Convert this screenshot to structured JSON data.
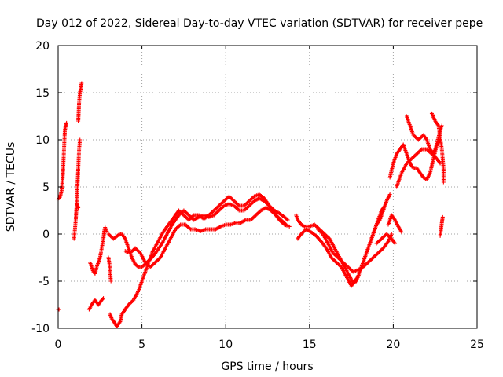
{
  "chart_data": {
    "type": "scatter",
    "title": "Day 012 of 2022, Sidereal Day-to-day VTEC variation (SDTVAR) for receiver pepe",
    "xlabel": "GPS time / hours",
    "ylabel": "SDTVAR / TECUs",
    "xlim": [
      0,
      25
    ],
    "ylim": [
      -10,
      20
    ],
    "xticks": [
      "0",
      "5",
      "10",
      "15",
      "20",
      "25"
    ],
    "yticks": [
      "-10",
      "-5",
      "0",
      "5",
      "10",
      "15",
      "20"
    ],
    "grid": true,
    "marker": "+",
    "color": "#ff0000",
    "series": [
      {
        "name": "t1",
        "points": [
          [
            0.0,
            -8
          ],
          [
            0.05,
            -8
          ]
        ]
      },
      {
        "name": "t2",
        "points": [
          [
            0.0,
            3.7
          ],
          [
            0.1,
            3.9
          ],
          [
            0.2,
            4.5
          ],
          [
            0.25,
            5.5
          ],
          [
            0.3,
            7
          ],
          [
            0.35,
            9
          ],
          [
            0.4,
            11
          ],
          [
            0.45,
            11.5
          ],
          [
            0.5,
            11.8
          ]
        ]
      },
      {
        "name": "t3",
        "points": [
          [
            0.95,
            -0.5
          ],
          [
            1.0,
            0.5
          ],
          [
            1.05,
            1.5
          ],
          [
            1.1,
            3
          ],
          [
            1.15,
            5
          ],
          [
            1.2,
            7
          ],
          [
            1.25,
            9
          ],
          [
            1.3,
            10
          ]
        ]
      },
      {
        "name": "t4",
        "points": [
          [
            1.1,
            3.2
          ],
          [
            1.15,
            3.0
          ],
          [
            1.2,
            2.8
          ]
        ]
      },
      {
        "name": "t5",
        "points": [
          [
            1.2,
            12
          ],
          [
            1.25,
            14
          ],
          [
            1.3,
            15
          ],
          [
            1.35,
            15.5
          ],
          [
            1.4,
            16
          ]
        ]
      },
      {
        "name": "t6",
        "points": [
          [
            1.85,
            -8
          ],
          [
            2.0,
            -7.5
          ],
          [
            2.2,
            -7
          ],
          [
            2.4,
            -7.5
          ],
          [
            2.6,
            -7
          ],
          [
            2.7,
            -6.8
          ]
        ]
      },
      {
        "name": "t7",
        "points": [
          [
            1.9,
            -3
          ],
          [
            2.0,
            -3.5
          ],
          [
            2.1,
            -4
          ],
          [
            2.2,
            -4.2
          ],
          [
            2.3,
            -3.5
          ],
          [
            2.4,
            -3
          ],
          [
            2.5,
            -2.5
          ],
          [
            2.6,
            -1.5
          ],
          [
            2.7,
            -0.5
          ],
          [
            2.75,
            0.3
          ],
          [
            2.8,
            0.7
          ],
          [
            2.9,
            0.3
          ]
        ]
      },
      {
        "name": "t8",
        "points": [
          [
            3.0,
            -2.5
          ],
          [
            3.05,
            -3
          ],
          [
            3.1,
            -4
          ],
          [
            3.15,
            -5
          ]
        ]
      },
      {
        "name": "t9",
        "points": [
          [
            3.1,
            -8.5
          ],
          [
            3.2,
            -9
          ],
          [
            3.4,
            -9.5
          ],
          [
            3.5,
            -9.8
          ],
          [
            3.7,
            -9.3
          ],
          [
            3.8,
            -8.5
          ],
          [
            4.0,
            -8
          ],
          [
            4.2,
            -7.5
          ],
          [
            4.5,
            -7
          ],
          [
            4.8,
            -6
          ],
          [
            5.0,
            -5
          ],
          [
            5.3,
            -3.5
          ],
          [
            5.6,
            -2
          ],
          [
            5.9,
            -1
          ],
          [
            6.2,
            0
          ],
          [
            6.5,
            0.8
          ],
          [
            6.8,
            1.5
          ],
          [
            7.0,
            2
          ],
          [
            7.2,
            2.5
          ],
          [
            7.5,
            2
          ],
          [
            7.8,
            1.5
          ],
          [
            8.1,
            2
          ],
          [
            8.4,
            2
          ],
          [
            8.7,
            1.6
          ],
          [
            9.0,
            2
          ],
          [
            9.3,
            2.5
          ],
          [
            9.6,
            3
          ],
          [
            9.9,
            3.5
          ],
          [
            10.2,
            4
          ],
          [
            10.5,
            3.5
          ],
          [
            10.8,
            3
          ],
          [
            11.1,
            3
          ],
          [
            11.4,
            3.5
          ],
          [
            11.7,
            4
          ],
          [
            12.0,
            4.2
          ],
          [
            12.3,
            3.8
          ],
          [
            12.6,
            3
          ],
          [
            12.9,
            2.5
          ],
          [
            13.2,
            2.2
          ],
          [
            13.5,
            1.8
          ],
          [
            13.7,
            1.5
          ]
        ]
      },
      {
        "name": "t10",
        "points": [
          [
            3.0,
            0
          ],
          [
            3.3,
            -0.5
          ],
          [
            3.6,
            -0.1
          ],
          [
            3.8,
            0
          ],
          [
            4.0,
            -0.5
          ],
          [
            4.2,
            -1.5
          ],
          [
            4.4,
            -2.5
          ],
          [
            4.6,
            -3.2
          ],
          [
            4.8,
            -3.5
          ],
          [
            5.0,
            -3.5
          ],
          [
            5.3,
            -3
          ],
          [
            5.6,
            -2.5
          ],
          [
            5.9,
            -1.8
          ],
          [
            6.2,
            -1
          ],
          [
            6.5,
            0
          ],
          [
            6.8,
            1
          ],
          [
            7.0,
            1.5
          ],
          [
            7.2,
            2
          ],
          [
            7.5,
            2.5
          ],
          [
            7.8,
            2
          ],
          [
            8.1,
            1.5
          ],
          [
            8.4,
            1.8
          ],
          [
            8.7,
            2
          ],
          [
            9.0,
            1.8
          ],
          [
            9.3,
            2
          ],
          [
            9.6,
            2.5
          ],
          [
            9.9,
            3
          ],
          [
            10.2,
            3.2
          ],
          [
            10.5,
            3
          ],
          [
            10.8,
            2.5
          ],
          [
            11.1,
            2.5
          ],
          [
            11.4,
            3
          ],
          [
            11.7,
            3.5
          ],
          [
            12.0,
            3.8
          ],
          [
            12.3,
            3.5
          ],
          [
            12.6,
            3
          ],
          [
            12.9,
            2.2
          ],
          [
            13.2,
            1.5
          ],
          [
            13.5,
            1
          ],
          [
            13.8,
            0.8
          ]
        ]
      },
      {
        "name": "t11",
        "points": [
          [
            4.0,
            -1.8
          ],
          [
            4.3,
            -2
          ],
          [
            4.6,
            -1.5
          ],
          [
            4.9,
            -2
          ],
          [
            5.2,
            -3
          ],
          [
            5.5,
            -3.5
          ],
          [
            5.8,
            -3
          ],
          [
            6.1,
            -2.5
          ],
          [
            6.4,
            -1.5
          ],
          [
            6.7,
            -0.5
          ],
          [
            7.0,
            0.5
          ],
          [
            7.3,
            1
          ],
          [
            7.6,
            1
          ],
          [
            7.9,
            0.5
          ],
          [
            8.2,
            0.5
          ],
          [
            8.5,
            0.3
          ],
          [
            8.8,
            0.5
          ],
          [
            9.1,
            0.5
          ],
          [
            9.4,
            0.5
          ],
          [
            9.7,
            0.8
          ],
          [
            10.0,
            1
          ],
          [
            10.3,
            1
          ],
          [
            10.6,
            1.2
          ],
          [
            10.9,
            1.2
          ],
          [
            11.2,
            1.5
          ],
          [
            11.5,
            1.5
          ],
          [
            11.8,
            2
          ],
          [
            12.1,
            2.5
          ],
          [
            12.4,
            2.8
          ],
          [
            12.7,
            2.5
          ],
          [
            13.0,
            2
          ],
          [
            13.3,
            1.5
          ],
          [
            13.6,
            1
          ]
        ]
      },
      {
        "name": "t12",
        "points": [
          [
            14.2,
            2
          ],
          [
            14.3,
            1.5
          ],
          [
            14.5,
            1
          ],
          [
            14.7,
            0.8
          ],
          [
            15.0,
            0.8
          ],
          [
            15.3,
            1
          ],
          [
            15.6,
            0.5
          ],
          [
            15.9,
            0
          ],
          [
            16.2,
            -0.5
          ],
          [
            16.5,
            -1.5
          ],
          [
            16.8,
            -2.5
          ],
          [
            17.1,
            -3.5
          ],
          [
            17.4,
            -4.5
          ],
          [
            17.6,
            -5.2
          ],
          [
            17.8,
            -5
          ],
          [
            18.0,
            -4
          ],
          [
            18.2,
            -3
          ],
          [
            18.4,
            -2
          ],
          [
            18.6,
            -1
          ],
          [
            18.8,
            0
          ],
          [
            19.0,
            1
          ],
          [
            19.2,
            1.5
          ],
          [
            19.4,
            2.5
          ],
          [
            19.6,
            3.5
          ],
          [
            19.8,
            4.2
          ]
        ]
      },
      {
        "name": "t13",
        "points": [
          [
            14.3,
            -0.5
          ],
          [
            14.5,
            0
          ],
          [
            14.8,
            0.5
          ],
          [
            15.1,
            0.2
          ],
          [
            15.4,
            -0.2
          ],
          [
            15.7,
            -0.8
          ],
          [
            16.0,
            -1.5
          ],
          [
            16.3,
            -2.5
          ],
          [
            16.6,
            -3
          ],
          [
            16.9,
            -3.5
          ],
          [
            17.2,
            -4.5
          ],
          [
            17.5,
            -5.5
          ],
          [
            17.7,
            -5
          ],
          [
            17.9,
            -4.5
          ],
          [
            18.1,
            -3.5
          ],
          [
            18.3,
            -2.5
          ],
          [
            18.5,
            -1.5
          ],
          [
            18.7,
            -0.5
          ],
          [
            18.9,
            0.5
          ],
          [
            19.1,
            1.5
          ],
          [
            19.3,
            2.5
          ],
          [
            19.5,
            3
          ]
        ]
      },
      {
        "name": "t14",
        "points": [
          [
            15.5,
            0.5
          ],
          [
            15.8,
            0
          ],
          [
            16.1,
            -1
          ],
          [
            16.4,
            -2
          ],
          [
            16.7,
            -2.5
          ],
          [
            17.0,
            -3
          ],
          [
            17.3,
            -3.5
          ],
          [
            17.6,
            -4
          ],
          [
            17.9,
            -3.8
          ],
          [
            18.2,
            -3.5
          ],
          [
            18.5,
            -3
          ],
          [
            18.8,
            -2.5
          ],
          [
            19.1,
            -2
          ],
          [
            19.4,
            -1.5
          ],
          [
            19.7,
            -0.8
          ],
          [
            19.9,
            0
          ]
        ]
      },
      {
        "name": "t15",
        "points": [
          [
            19.0,
            -1
          ],
          [
            19.3,
            -0.5
          ],
          [
            19.6,
            0
          ],
          [
            19.9,
            -0.5
          ],
          [
            20.1,
            -1
          ]
        ]
      },
      {
        "name": "t16",
        "points": [
          [
            19.7,
            1
          ],
          [
            19.9,
            2
          ],
          [
            20.1,
            1.5
          ],
          [
            20.3,
            0.8
          ],
          [
            20.5,
            0.2
          ]
        ]
      },
      {
        "name": "t17",
        "points": [
          [
            19.8,
            6
          ],
          [
            20.0,
            7.5
          ],
          [
            20.2,
            8.5
          ],
          [
            20.4,
            9
          ],
          [
            20.6,
            9.5
          ],
          [
            20.8,
            8.5
          ],
          [
            21.0,
            7.5
          ],
          [
            21.2,
            7
          ],
          [
            21.4,
            7
          ],
          [
            21.6,
            6.5
          ],
          [
            21.8,
            6
          ],
          [
            22.0,
            5.8
          ],
          [
            22.2,
            6.5
          ],
          [
            22.4,
            8
          ],
          [
            22.6,
            9.5
          ],
          [
            22.8,
            10
          ]
        ]
      },
      {
        "name": "t18",
        "points": [
          [
            20.2,
            5
          ],
          [
            20.5,
            6.5
          ],
          [
            20.8,
            7.5
          ],
          [
            21.1,
            8
          ],
          [
            21.4,
            8.5
          ],
          [
            21.7,
            9
          ],
          [
            22.0,
            9
          ],
          [
            22.3,
            8.5
          ],
          [
            22.6,
            8
          ],
          [
            22.8,
            7.5
          ]
        ]
      },
      {
        "name": "t19",
        "points": [
          [
            20.8,
            12.5
          ],
          [
            21.0,
            11.5
          ],
          [
            21.2,
            10.5
          ],
          [
            21.5,
            10
          ],
          [
            21.8,
            10.5
          ],
          [
            22.0,
            10
          ],
          [
            22.2,
            9
          ],
          [
            22.4,
            8.5
          ],
          [
            22.6,
            9.5
          ],
          [
            22.8,
            11
          ],
          [
            22.9,
            11.5
          ]
        ]
      },
      {
        "name": "t20",
        "points": [
          [
            22.3,
            12.8
          ],
          [
            22.5,
            12
          ],
          [
            22.7,
            11.5
          ],
          [
            22.9,
            9
          ],
          [
            23.0,
            7
          ],
          [
            23.0,
            5.5
          ]
        ]
      },
      {
        "name": "t21",
        "points": [
          [
            22.8,
            -0.2
          ],
          [
            22.85,
            0.5
          ],
          [
            22.9,
            1.2
          ],
          [
            22.95,
            1.8
          ]
        ]
      }
    ]
  }
}
